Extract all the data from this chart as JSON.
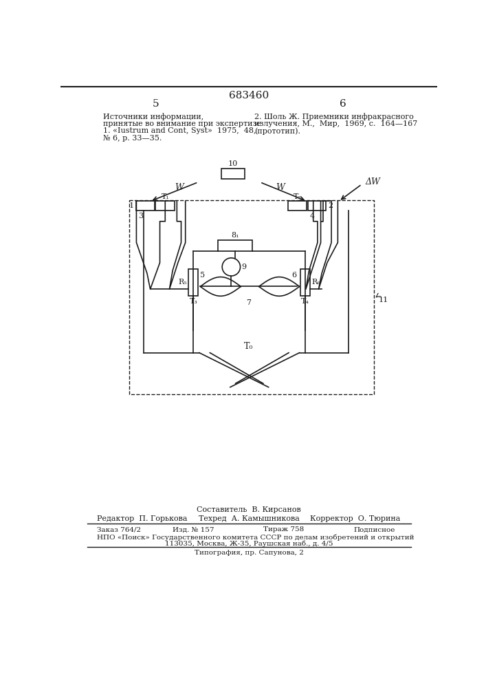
{
  "title": "683460",
  "page_left": "5",
  "page_right": "6",
  "text_left_line1": "Источники информации,",
  "text_left_line2": "принятые во внимание при экспертизе",
  "text_left_line3": "1. «Iustrum and Cont, Syst»  1975,  48,",
  "text_left_line4": "№ 6, р. 33—35.",
  "text_right_line1": "2. Шоль Ж. Приемники инфракрасного",
  "text_right_line2": "излучения, М.,  Мир,  1969, с.  164—167",
  "text_right_line3": "(прототип).",
  "footer_composer": "Составитель  В. Кирсанов",
  "footer_editor": "Редактор  П. Горькова",
  "footer_tech": "Техред  А. Камышникова",
  "footer_corrector": "Корректор  О. Тюрина",
  "footer_line1a": "Заказ 764/2",
  "footer_line1b": "Изд. № 157",
  "footer_line1c": "Тираж 758",
  "footer_line1d": "Подписное",
  "footer_line2": "НПО «Поиск» Государственного комитета СССР по делам изобретений и открытий",
  "footer_line3": "113035, Москва, Ж-35, Раушская наб., д. 4/5",
  "footer_line4": "Типография, пр. Сапунова, 2",
  "bg_color": "#ffffff",
  "dc": "#1a1a1a"
}
